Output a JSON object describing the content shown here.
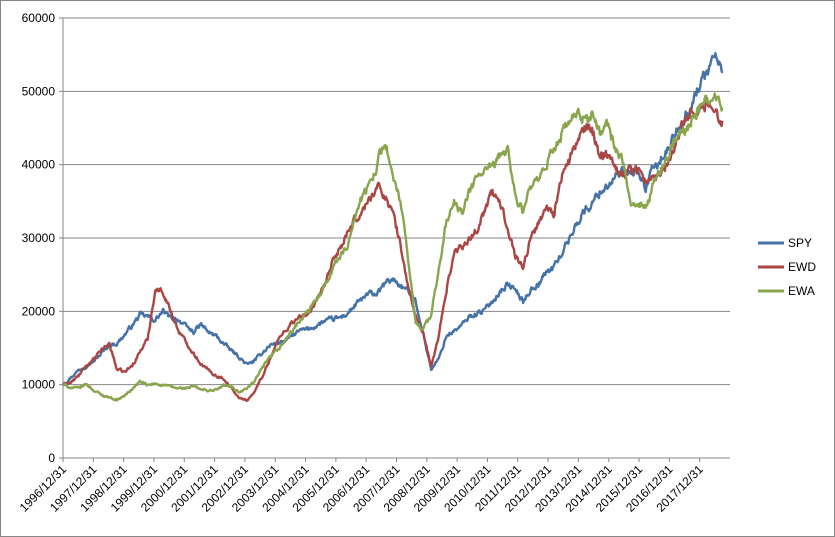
{
  "chart_data": {
    "type": "line",
    "title": "",
    "xlabel": "",
    "ylabel": "",
    "ylim": [
      0,
      60000
    ],
    "yticks": [
      0,
      10000,
      20000,
      30000,
      40000,
      50000,
      60000
    ],
    "x_tick_labels": [
      "1996/12/31",
      "1997/12/31",
      "1998/12/31",
      "1999/12/31",
      "2000/12/31",
      "2001/12/31",
      "2002/12/31",
      "2003/12/31",
      "2004/12/31",
      "2005/12/31",
      "2006/12/31",
      "2007/12/31",
      "2008/12/31",
      "2009/12/31",
      "2010/12/31",
      "2011/12/31",
      "2012/12/31",
      "2013/12/31",
      "2014/12/31",
      "2015/12/31",
      "2016/12/31",
      "2017/12/31"
    ],
    "grid": true,
    "legend_position": "right",
    "x": [
      1996.99,
      1997.25,
      1997.5,
      1997.75,
      1998.0,
      1998.25,
      1998.5,
      1998.75,
      1999.0,
      1999.25,
      1999.5,
      1999.75,
      2000.0,
      2000.25,
      2000.5,
      2000.75,
      2001.0,
      2001.25,
      2001.5,
      2001.75,
      2002.0,
      2002.25,
      2002.5,
      2002.75,
      2003.0,
      2003.25,
      2003.5,
      2003.75,
      2004.0,
      2004.25,
      2004.5,
      2004.75,
      2005.0,
      2005.25,
      2005.5,
      2005.75,
      2006.0,
      2006.25,
      2006.5,
      2006.75,
      2007.0,
      2007.25,
      2007.5,
      2007.75,
      2008.0,
      2008.25,
      2008.5,
      2008.75,
      2009.0,
      2009.25,
      2009.5,
      2009.75,
      2010.0,
      2010.25,
      2010.5,
      2010.75,
      2011.0,
      2011.25,
      2011.5,
      2011.75,
      2012.0,
      2012.25,
      2012.5,
      2012.75,
      2013.0,
      2013.25,
      2013.5,
      2013.75,
      2014.0,
      2014.25,
      2014.5,
      2014.75,
      2015.0,
      2015.25,
      2015.5,
      2015.75,
      2016.0,
      2016.25,
      2016.5,
      2016.75,
      2017.0,
      2017.25,
      2017.5,
      2017.75,
      2018.0,
      2018.25,
      2018.5
    ],
    "series": [
      {
        "name": "SPY",
        "color": "#4572A7",
        "values": [
          10000,
          11000,
          12000,
          12600,
          13200,
          14300,
          15400,
          15600,
          16800,
          18100,
          19500,
          19300,
          18800,
          20000,
          19100,
          18900,
          17900,
          17200,
          18200,
          17100,
          16600,
          15500,
          14600,
          13700,
          12700,
          13300,
          14400,
          15400,
          15700,
          16000,
          16800,
          17400,
          17600,
          18000,
          18600,
          18900,
          19100,
          19600,
          20700,
          21700,
          22400,
          22400,
          23800,
          24400,
          23500,
          22800,
          21400,
          16800,
          12100,
          13500,
          16700,
          17300,
          18100,
          19300,
          19700,
          20200,
          21400,
          22700,
          23700,
          22900,
          21300,
          23000,
          23700,
          25300,
          26000,
          27900,
          29800,
          32100,
          33600,
          34700,
          36300,
          37200,
          38200,
          38800,
          38600,
          39000,
          36800,
          39400,
          40700,
          42000,
          44500,
          46500,
          48300,
          50700,
          52700,
          55000,
          52500
        ]
      },
      {
        "name": "EWD",
        "color": "#AA4643",
        "values": [
          10000,
          10300,
          11200,
          12600,
          13400,
          14800,
          15600,
          12100,
          11700,
          12600,
          14500,
          16200,
          23000,
          22700,
          20100,
          17400,
          15800,
          14300,
          12800,
          11900,
          11200,
          10800,
          9400,
          8100,
          7900,
          9100,
          11200,
          13600,
          16000,
          17500,
          18600,
          19200,
          19800,
          21000,
          23300,
          26300,
          28500,
          30200,
          32300,
          33600,
          35400,
          37000,
          35800,
          33400,
          29000,
          23300,
          19300,
          16900,
          12300,
          16700,
          23000,
          28000,
          29000,
          29800,
          31200,
          33900,
          36200,
          34600,
          31600,
          27600,
          26000,
          30000,
          32000,
          34300,
          33400,
          38300,
          40400,
          43200,
          44600,
          45000,
          41200,
          41700,
          40000,
          38500,
          39400,
          39500,
          37500,
          38100,
          39100,
          40700,
          43500,
          45700,
          47600,
          47700,
          48200,
          47200,
          46000
        ]
      },
      {
        "name": "EWA",
        "color": "#89A54E",
        "values": [
          10000,
          9600,
          9500,
          10100,
          9200,
          8600,
          8300,
          7900,
          8500,
          9400,
          10400,
          9900,
          10100,
          10000,
          9700,
          9500,
          9500,
          9800,
          9300,
          9200,
          9300,
          9900,
          9700,
          9000,
          9500,
          10500,
          12300,
          13700,
          14700,
          16100,
          17600,
          18800,
          20000,
          21500,
          23500,
          25500,
          27500,
          28500,
          33000,
          35500,
          37300,
          40300,
          43500,
          38000,
          35000,
          27000,
          18400,
          17700,
          19500,
          25600,
          32300,
          34800,
          33200,
          36400,
          38200,
          39300,
          39400,
          41300,
          42300,
          35500,
          33500,
          37000,
          37600,
          39800,
          42300,
          44100,
          45800,
          46700,
          46100,
          47000,
          44200,
          45600,
          42500,
          40200,
          34400,
          35200,
          33900,
          37200,
          39600,
          41400,
          43500,
          44600,
          46200,
          47500,
          48700,
          49400,
          47800
        ]
      }
    ]
  }
}
